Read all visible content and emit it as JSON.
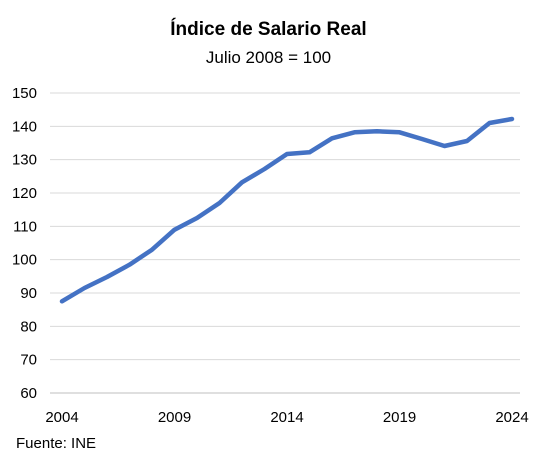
{
  "chart_data": {
    "type": "line",
    "title": "Índice de Salario Real",
    "subtitle": "Julio 2008 = 100",
    "source": "Fuente: INE",
    "xlabel": "",
    "ylabel": "",
    "ylim": [
      60,
      150
    ],
    "xlim": [
      2004,
      2024
    ],
    "y_ticks": [
      60,
      70,
      80,
      90,
      100,
      110,
      120,
      130,
      140,
      150
    ],
    "x_ticks": [
      2004,
      2009,
      2014,
      2019,
      2024
    ],
    "grid": true,
    "legend": "none",
    "series": [
      {
        "color": "#4472C4",
        "x": [
          2004,
          2005,
          2006,
          2007,
          2008,
          2009,
          2010,
          2011,
          2012,
          2013,
          2014,
          2015,
          2016,
          2017,
          2018,
          2019,
          2020,
          2021,
          2022,
          2023,
          2024
        ],
        "values": [
          87.5,
          91.5,
          94.8,
          98.5,
          103,
          109,
          112.5,
          117,
          123.2,
          127.2,
          131.7,
          132.2,
          136.4,
          138.2,
          138.5,
          138.2,
          136.2,
          134.1,
          135.6,
          141,
          142.2
        ]
      }
    ]
  }
}
